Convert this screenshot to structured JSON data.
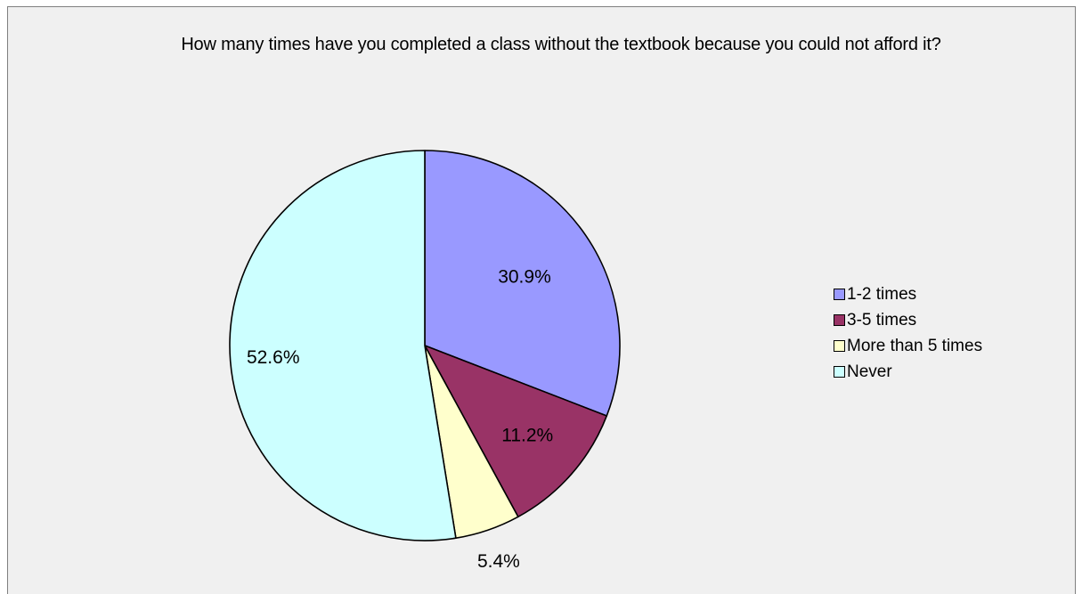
{
  "chart_data": {
    "type": "pie",
    "title": "How many times have you completed a class without the textbook because you could not afford it?",
    "slices": [
      {
        "label": "1-2 times",
        "value": 30.9,
        "display": "30.9%",
        "color": "#9999ff"
      },
      {
        "label": "3-5 times",
        "value": 11.2,
        "display": "11.2%",
        "color": "#993366"
      },
      {
        "label": "More than 5 times",
        "value": 5.4,
        "display": "5.4%",
        "color": "#ffffcc"
      },
      {
        "label": "Never",
        "value": 52.6,
        "display": "52.6%",
        "color": "#ccffff"
      }
    ],
    "legend_position": "right",
    "start_angle": "12 o'clock",
    "direction": "clockwise"
  }
}
